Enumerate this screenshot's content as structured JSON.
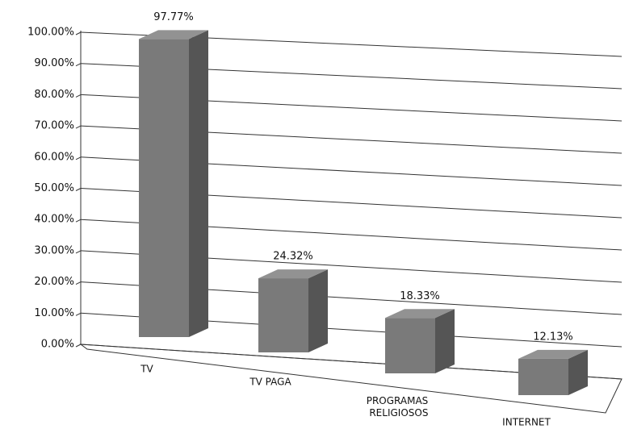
{
  "chart_data": {
    "type": "bar3d",
    "categories": [
      "TV",
      "TV PAGA",
      "PROGRAMAS RELIGIOSOS",
      "INTERNET"
    ],
    "values": [
      97.77,
      24.32,
      18.33,
      12.13
    ],
    "value_labels": [
      "97.77%",
      "24.32%",
      "18.33%",
      "12.13%"
    ],
    "color": "#7a7a7a",
    "ylim": [
      0,
      100
    ],
    "yticks": [
      {
        "value": 0,
        "label": "0.00%"
      },
      {
        "value": 10,
        "label": "10.00%"
      },
      {
        "value": 20,
        "label": "20.00%"
      },
      {
        "value": 30,
        "label": "30.00%"
      },
      {
        "value": 40,
        "label": "40.00%"
      },
      {
        "value": 50,
        "label": "50.00%"
      },
      {
        "value": 60,
        "label": "60.00%"
      },
      {
        "value": 70,
        "label": "70.00%"
      },
      {
        "value": 80,
        "label": "80.00%"
      },
      {
        "value": 90,
        "label": "90.00%"
      },
      {
        "value": 100,
        "label": "100.00%"
      }
    ],
    "grid": true
  }
}
